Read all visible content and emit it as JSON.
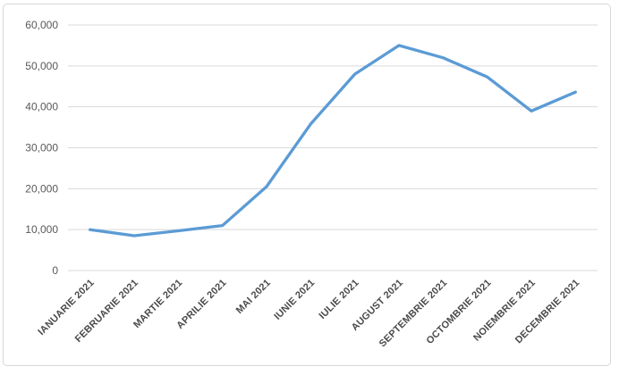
{
  "chart_data": {
    "type": "line",
    "title": "",
    "xlabel": "",
    "ylabel": "",
    "categories": [
      "IANUARIE 2021",
      "FEBRUARIE 2021",
      "MARTIE 2021",
      "APRILIE 2021",
      "MAI 2021",
      "IUNIE 2021",
      "IULIE 2021",
      "AUGUST 2021",
      "SEPTEMBRIE 2021",
      "OCTOMBRIE 2021",
      "NOIEMBRIE 2021",
      "DECEMBRIE 2021"
    ],
    "series": [
      {
        "name": "",
        "values": [
          10000,
          8500,
          9700,
          11000,
          20500,
          35800,
          48000,
          55000,
          52000,
          47300,
          39000,
          43600
        ]
      }
    ],
    "ylim": [
      0,
      60000
    ],
    "ytick_values": [
      0,
      10000,
      20000,
      30000,
      40000,
      50000,
      60000
    ],
    "ytick_labels": [
      "0",
      "10,000",
      "20,000",
      "30,000",
      "40,000",
      "50,000",
      "60,000"
    ],
    "grid": "horizontal",
    "legend": "none",
    "x_label_rotation_deg": 45,
    "colors": {
      "line": "#5B9BD5",
      "gridline": "#d9d9d9",
      "ytick_label": "#595959",
      "xtick_label": "#4a4a4a",
      "frame_border": "#d7d7d7",
      "background": "#ffffff"
    }
  }
}
